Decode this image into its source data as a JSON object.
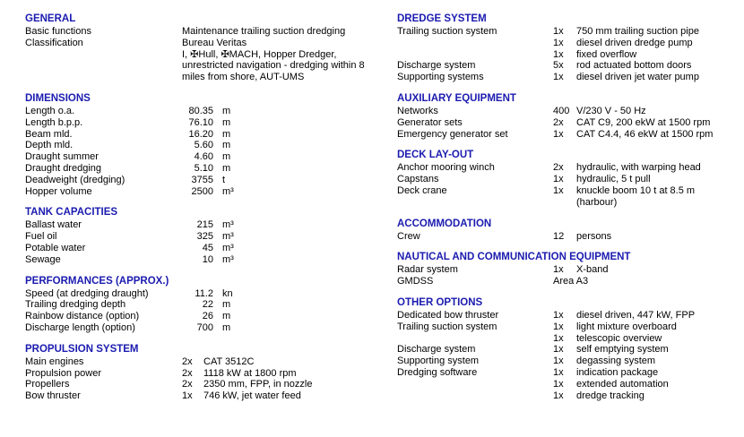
{
  "page": {
    "background_color": "#ffffff",
    "text_color": "#000000",
    "heading_color": "#1b1bb0"
  },
  "columns": {
    "left": [
      {
        "title": "GENERAL",
        "type": "plain",
        "rows": [
          {
            "label": "Basic functions",
            "value": "Maintenance trailing suction dredging"
          },
          {
            "label": "Classification",
            "value": "Bureau Veritas\nI, ✠Hull, ✠MACH, Hopper Dredger,\nunrestricted navigation - dredging within 8\nmiles from shore, AUT-UMS"
          }
        ]
      },
      {
        "title": "DIMENSIONS",
        "type": "num",
        "rows": [
          {
            "label": "Length o.a.",
            "num": "80.35",
            "unit": "m"
          },
          {
            "label": "Length b.p.p.",
            "num": "76.10",
            "unit": "m"
          },
          {
            "label": "Beam mld.",
            "num": "16.20",
            "unit": "m"
          },
          {
            "label": "Depth mld.",
            "num": "5.60",
            "unit": "m"
          },
          {
            "label": "Draught summer",
            "num": "4.60",
            "unit": "m"
          },
          {
            "label": "Draught dredging",
            "num": "5.10",
            "unit": "m"
          },
          {
            "label": "Deadweight (dredging)",
            "num": "3755",
            "unit": "t"
          },
          {
            "label": "Hopper volume",
            "num": "2500",
            "unit": "m³"
          }
        ]
      },
      {
        "title": "TANK CAPACITIES",
        "type": "num",
        "rows": [
          {
            "label": "Ballast water",
            "num": "215",
            "unit": "m³"
          },
          {
            "label": "Fuel oil",
            "num": "325",
            "unit": "m³"
          },
          {
            "label": "Potable water",
            "num": "45",
            "unit": "m³"
          },
          {
            "label": "Sewage",
            "num": "10",
            "unit": "m³"
          }
        ]
      },
      {
        "title": "PERFORMANCES (APPROX.)",
        "type": "num",
        "rows": [
          {
            "label": "Speed (at dredging draught)",
            "num": "11.2",
            "unit": "kn"
          },
          {
            "label": "Trailing dredging depth",
            "num": "22",
            "unit": "m"
          },
          {
            "label": "Rainbow distance (option)",
            "num": "26",
            "unit": "m"
          },
          {
            "label": "Discharge length (option)",
            "num": "700",
            "unit": "m"
          }
        ]
      },
      {
        "title": "PROPULSION SYSTEM",
        "type": "qty",
        "rows": [
          {
            "label": "Main engines",
            "qty": "2x",
            "value": "CAT 3512C"
          },
          {
            "label": "Propulsion power",
            "qty": "2x",
            "value": "1118 kW at 1800 rpm"
          },
          {
            "label": "Propellers",
            "qty": "2x",
            "value": "2350 mm, FPP, in nozzle"
          },
          {
            "label": "Bow thruster",
            "qty": "1x",
            "value": "746 kW, jet water feed"
          }
        ]
      }
    ],
    "right": [
      {
        "title": "DREDGE SYSTEM",
        "type": "qty",
        "rows": [
          {
            "label": "Trailing suction system",
            "qty": "1x",
            "value": "750 mm trailing suction pipe"
          },
          {
            "label": "",
            "qty": "1x",
            "value": "diesel driven dredge pump"
          },
          {
            "label": "",
            "qty": "1x",
            "value": "fixed overflow"
          },
          {
            "label": "Discharge system",
            "qty": "5x",
            "value": "rod actuated bottom doors"
          },
          {
            "label": "Supporting systems",
            "qty": "1x",
            "value": "diesel driven jet water pump"
          }
        ]
      },
      {
        "title": "AUXILIARY EQUIPMENT",
        "type": "qty",
        "rows": [
          {
            "label": "Networks",
            "qty": "400",
            "value": "V/230 V - 50 Hz"
          },
          {
            "label": "Generator sets",
            "qty": "2x",
            "value": "CAT C9, 200 ekW at 1500 rpm"
          },
          {
            "label": "Emergency generator set",
            "qty": "1x",
            "value": "CAT C4.4, 46 ekW at 1500 rpm"
          }
        ]
      },
      {
        "title": "DECK LAY-OUT",
        "type": "qty",
        "rows": [
          {
            "label": "Anchor mooring winch",
            "qty": "2x",
            "value": "hydraulic, with warping head"
          },
          {
            "label": "Capstans",
            "qty": "1x",
            "value": "hydraulic, 5 t pull"
          },
          {
            "label": "Deck crane",
            "qty": "1x",
            "value": "knuckle boom 10 t at 8.5 m\n(harbour)"
          }
        ]
      },
      {
        "title": "ACCOMMODATION",
        "type": "qty",
        "rows": [
          {
            "label": "Crew",
            "qty": "12",
            "value": "persons"
          }
        ]
      },
      {
        "title": "NAUTICAL AND COMMUNICATION EQUIPMENT",
        "type": "qty",
        "rows": [
          {
            "label": "Radar system",
            "qty": "1x",
            "value": "X-band"
          },
          {
            "label": "GMDSS",
            "qty": "Area A3",
            "value": ""
          }
        ]
      },
      {
        "title": "OTHER OPTIONS",
        "type": "qty",
        "rows": [
          {
            "label": "Dedicated bow thruster",
            "qty": "1x",
            "value": "diesel driven, 447 kW, FPP"
          },
          {
            "label": "Trailing suction system",
            "qty": "1x",
            "value": "light mixture overboard"
          },
          {
            "label": "",
            "qty": "1x",
            "value": "telescopic overview"
          },
          {
            "label": "Discharge system",
            "qty": "1x",
            "value": "self emptying system"
          },
          {
            "label": "Supporting system",
            "qty": "1x",
            "value": "degassing system"
          },
          {
            "label": "Dredging software",
            "qty": "1x",
            "value": "indication package"
          },
          {
            "label": "",
            "qty": "1x",
            "value": "extended automation"
          },
          {
            "label": "",
            "qty": "1x",
            "value": "dredge tracking"
          }
        ]
      }
    ]
  }
}
